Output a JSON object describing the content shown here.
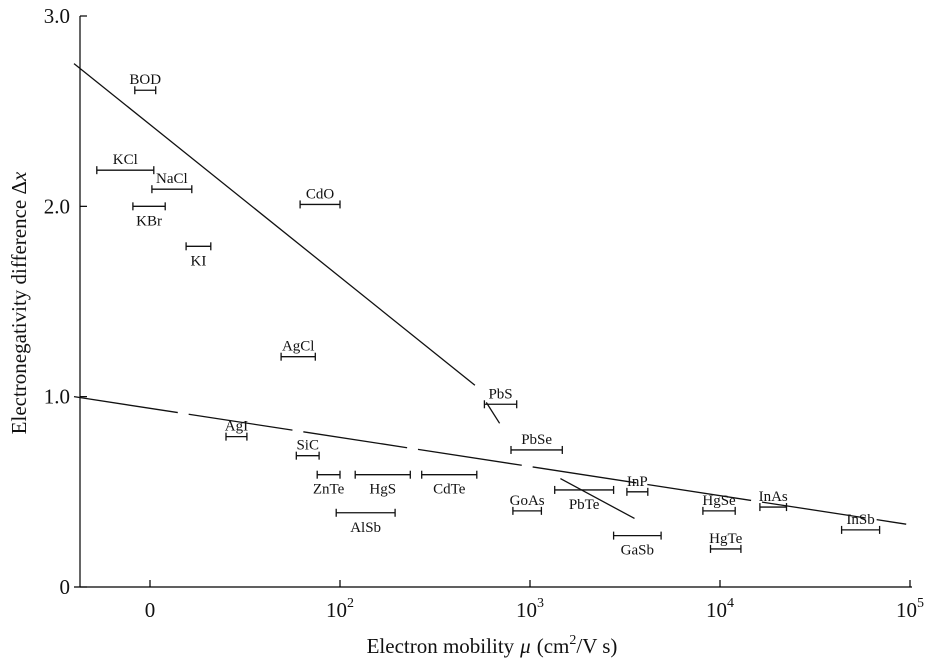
{
  "chart_data": {
    "type": "scatter",
    "xlabel": "Electron mobility",
    "xlabel_symbol": "μ",
    "xlabel_unit_a": "(cm",
    "xlabel_unit_sup": "2",
    "xlabel_unit_b": "/V s)",
    "ylabel": "Electronegativity difference Δ",
    "ylabel_symbol": "x",
    "x_scale": "log",
    "xlim": [
      0.55,
      5
    ],
    "ylim": [
      0,
      3.0
    ],
    "x_ticks": [
      {
        "value": 1,
        "base": "0",
        "exp": ""
      },
      {
        "value": 2,
        "base": "10",
        "exp": "2"
      },
      {
        "value": 3,
        "base": "10",
        "exp": "3"
      },
      {
        "value": 4,
        "base": "10",
        "exp": "4"
      },
      {
        "value": 5,
        "base": "10",
        "exp": "5"
      }
    ],
    "y_ticks": [
      {
        "value": 0,
        "label": "0"
      },
      {
        "value": 1.0,
        "label": "1.0"
      },
      {
        "value": 2.0,
        "label": "2.0"
      },
      {
        "value": 3.0,
        "label": "3.0"
      }
    ],
    "grid": false,
    "trend_lines": [
      {
        "points": [
          [
            0.6,
            2.75
          ],
          [
            2.71,
            1.06
          ]
        ],
        "style": "solid"
      },
      {
        "points": [
          [
            2.77,
            0.97
          ],
          [
            2.84,
            0.86
          ]
        ],
        "style": "solid"
      },
      {
        "points": [
          [
            0.6,
            1.0
          ],
          [
            4.98,
            0.33
          ]
        ],
        "style": "dashed"
      },
      {
        "points": [
          [
            3.16,
            0.57
          ],
          [
            3.55,
            0.36
          ]
        ],
        "style": "solid"
      }
    ],
    "points": [
      {
        "label": "BOD",
        "x_min": 0.92,
        "x_max": 1.03,
        "y": 2.61,
        "label_pos": "above"
      },
      {
        "label": "KCl",
        "x_min": 0.72,
        "x_max": 1.02,
        "y": 2.19,
        "label_pos": "above"
      },
      {
        "label": "NaCl",
        "x_min": 1.01,
        "x_max": 1.22,
        "y": 2.09,
        "label_pos": "above"
      },
      {
        "label": "KBr",
        "x_min": 0.91,
        "x_max": 1.08,
        "y": 2.0,
        "label_pos": "below"
      },
      {
        "label": "KI",
        "x_min": 1.19,
        "x_max": 1.32,
        "y": 1.79,
        "label_pos": "below"
      },
      {
        "label": "CdO",
        "x_min": 1.79,
        "x_max": 2.0,
        "y": 2.01,
        "label_pos": "above"
      },
      {
        "label": "AgCl",
        "x_min": 1.69,
        "x_max": 1.87,
        "y": 1.21,
        "label_pos": "above"
      },
      {
        "label": "AgI",
        "x_min": 1.4,
        "x_max": 1.51,
        "y": 0.79,
        "label_pos": "above"
      },
      {
        "label": "SiC",
        "x_min": 1.77,
        "x_max": 1.89,
        "y": 0.69,
        "label_pos": "above"
      },
      {
        "label": "ZnTe",
        "x_min": 1.88,
        "x_max": 2.0,
        "y": 0.59,
        "label_pos": "below"
      },
      {
        "label": "HgS",
        "x_min": 2.08,
        "x_max": 2.37,
        "y": 0.59,
        "label_pos": "below"
      },
      {
        "label": "CdTe",
        "x_min": 2.43,
        "x_max": 2.72,
        "y": 0.59,
        "label_pos": "below"
      },
      {
        "label": "AlSb",
        "x_min": 1.98,
        "x_max": 2.29,
        "y": 0.39,
        "label_pos": "below"
      },
      {
        "label": "PbS",
        "x_min": 2.76,
        "x_max": 2.93,
        "y": 0.96,
        "label_pos": "above"
      },
      {
        "label": "PbSe",
        "x_min": 2.9,
        "x_max": 3.17,
        "y": 0.72,
        "label_pos": "above"
      },
      {
        "label": "GoAs",
        "x_min": 2.91,
        "x_max": 3.06,
        "y": 0.4,
        "label_pos": "above"
      },
      {
        "label": "PbTe",
        "x_min": 3.13,
        "x_max": 3.44,
        "y": 0.51,
        "label_pos": "below"
      },
      {
        "label": "GaSb",
        "x_min": 3.44,
        "x_max": 3.69,
        "y": 0.27,
        "label_pos": "below"
      },
      {
        "label": "InP",
        "x_min": 3.51,
        "x_max": 3.62,
        "y": 0.5,
        "label_pos": "above"
      },
      {
        "label": "HgSe",
        "x_min": 3.91,
        "x_max": 4.08,
        "y": 0.4,
        "label_pos": "above"
      },
      {
        "label": "HgTe",
        "x_min": 3.95,
        "x_max": 4.11,
        "y": 0.2,
        "label_pos": "above"
      },
      {
        "label": "InAs",
        "x_min": 4.21,
        "x_max": 4.35,
        "y": 0.42,
        "label_pos": "above"
      },
      {
        "label": "InSb",
        "x_min": 4.64,
        "x_max": 4.84,
        "y": 0.3,
        "label_pos": "above"
      }
    ]
  }
}
